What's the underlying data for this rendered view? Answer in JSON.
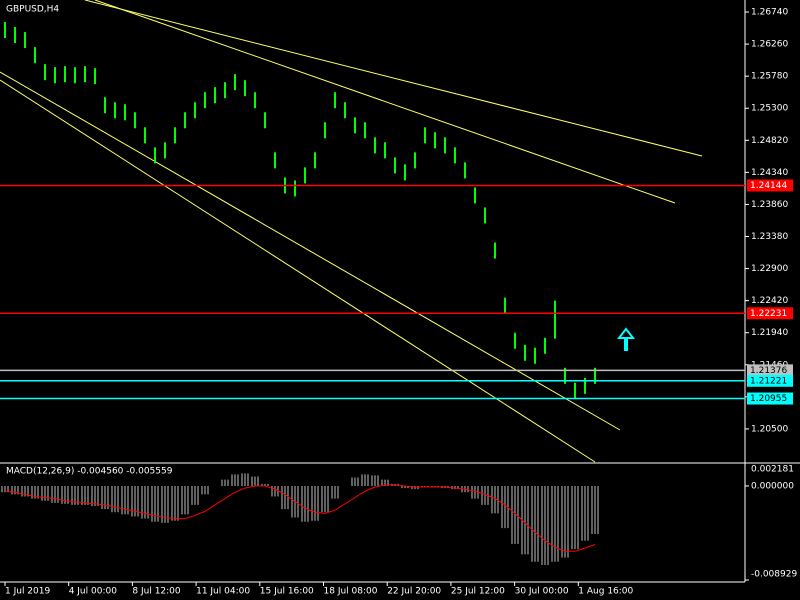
{
  "chart_data": {
    "type": "ohlc",
    "title": "GBPUSD,H4",
    "color": "#00ff00",
    "high": [
      1.2659,
      1.26515,
      1.2644,
      1.26215,
      1.2596,
      1.25915,
      1.2593,
      1.25915,
      1.2593,
      1.259,
      1.25465,
      1.2539,
      1.2536,
      1.2524,
      1.25015,
      1.24715,
      1.2479,
      1.25015,
      1.2524,
      1.2539,
      1.2554,
      1.25615,
      1.2569,
      1.2581,
      1.2572,
      1.2554,
      1.2524,
      1.2464,
      1.24265,
      1.2422,
      1.24415,
      1.2464,
      1.2509,
      1.2554,
      1.2539,
      1.25165,
      1.2509,
      1.24865,
      1.2479,
      1.24565,
      1.2446,
      1.2464,
      1.25015,
      1.2494,
      1.24865,
      1.24715,
      1.2449,
      1.24115,
      1.23815,
      1.2329,
      1.22465,
      1.2194,
      1.2176,
      1.21715,
      1.21865,
      1.2242,
      1.21415,
      1.2119,
      1.21265,
      1.21415
    ],
    "low": [
      1.2635,
      1.26275,
      1.262,
      1.25975,
      1.2572,
      1.25675,
      1.2569,
      1.25675,
      1.2569,
      1.2566,
      1.25225,
      1.2515,
      1.2512,
      1.25,
      1.24775,
      1.24475,
      1.2455,
      1.24775,
      1.25,
      1.2515,
      1.253,
      1.25375,
      1.2545,
      1.2557,
      1.2548,
      1.253,
      1.25,
      1.244,
      1.24025,
      1.2398,
      1.24175,
      1.244,
      1.2485,
      1.253,
      1.2515,
      1.24925,
      1.2485,
      1.24625,
      1.2455,
      1.24325,
      1.2422,
      1.244,
      1.24775,
      1.247,
      1.24625,
      1.24475,
      1.2425,
      1.23875,
      1.23575,
      1.2305,
      1.22225,
      1.217,
      1.2152,
      1.21475,
      1.21625,
      1.2185,
      1.21175,
      1.2095,
      1.21025,
      1.21175
    ],
    "ylim": [
      1.20005,
      1.2692
    ],
    "yticks": [
      {
        "value": 1.2674,
        "label": "1.26740"
      },
      {
        "value": 1.2626,
        "label": "1.26260"
      },
      {
        "value": 1.2578,
        "label": "1.25780"
      },
      {
        "value": 1.253,
        "label": "1.25300"
      },
      {
        "value": 1.2482,
        "label": "1.24820"
      },
      {
        "value": 1.2434,
        "label": "1.24340"
      },
      {
        "value": 1.2386,
        "label": "1.23860"
      },
      {
        "value": 1.2338,
        "label": "1.23380"
      },
      {
        "value": 1.229,
        "label": "1.22900"
      },
      {
        "value": 1.2242,
        "label": "1.22420"
      },
      {
        "value": 1.2194,
        "label": "1.21940"
      },
      {
        "value": 1.2146,
        "label": "1.21460"
      },
      {
        "value": 1.2098,
        "label": "1.20980"
      },
      {
        "value": 1.205,
        "label": "1.20500"
      }
    ],
    "levels": [
      {
        "value": 1.24144,
        "color": "#ff0000"
      },
      {
        "value": 1.22231,
        "color": "#ff0000"
      },
      {
        "value": 1.21376,
        "color": "#c0c0c0"
      },
      {
        "value": 1.21221,
        "color": "#00ffff"
      },
      {
        "value": 1.20955,
        "color": "#00ffff"
      }
    ],
    "x_labels": [
      "1 Jul 2019",
      "4 Jul 00:00",
      "8 Jul 12:00",
      "11 Jul 04:00",
      "15 Jul 16:00",
      "18 Jul 08:00",
      "22 Jul 20:00",
      "25 Jul 12:00",
      "30 Jul 00:00",
      "1 Aug 16:00"
    ],
    "macd": {
      "type": "histogram-line",
      "title": "MACD(12,26,9) -0.004560 -0.005559",
      "ylim": [
        -0.008929,
        0.002181
      ],
      "yticks": [
        0.002181,
        {
          "value": 0,
          "label": "0.000000"
        },
        -0.008929
      ],
      "histogram": {
        "color": "#c0c0c0",
        "values": [
          -0.0006,
          -0.0008,
          -0.001,
          -0.0012,
          -0.0014,
          -0.0016,
          -0.0017,
          -0.0018,
          -0.0018,
          -0.0019,
          -0.0022,
          -0.0025,
          -0.0027,
          -0.0029,
          -0.0031,
          -0.0034,
          -0.0035,
          -0.0033,
          -0.0027,
          -0.0018,
          -0.0008,
          0,
          0.0006,
          0.0011,
          0.0012,
          0.0009,
          0.0002,
          -0.001,
          -0.0022,
          -0.003,
          -0.0034,
          -0.0033,
          -0.0025,
          -0.0012,
          0,
          0.0008,
          0.0011,
          0.001,
          0.0006,
          0.0002,
          -0.0002,
          -0.0003,
          -0.0001,
          -0.0001,
          -0.0002,
          -0.0003,
          -0.0006,
          -0.0012,
          -0.0018,
          -0.0026,
          -0.004,
          -0.0055,
          -0.0065,
          -0.0072,
          -0.0075,
          -0.0072,
          -0.0068,
          -0.006,
          -0.0052,
          -0.00456
        ]
      },
      "signal": {
        "color": "#ff0000",
        "values": [
          -0.0005,
          -0.0006,
          -0.0008,
          -0.001,
          -0.0011,
          -0.0012,
          -0.0014,
          -0.0015,
          -0.0016,
          -0.0017,
          -0.0018,
          -0.002,
          -0.0022,
          -0.0024,
          -0.0026,
          -0.0028,
          -0.003,
          -0.0031,
          -0.0031,
          -0.0028,
          -0.0024,
          -0.0018,
          -0.0012,
          -0.0006,
          -0.0002,
          0,
          0,
          -0.0003,
          -0.0008,
          -0.0015,
          -0.0021,
          -0.0025,
          -0.0026,
          -0.0023,
          -0.0017,
          -0.0011,
          -0.0005,
          -0.0001,
          0.0001,
          0.0001,
          0,
          -0.0001,
          -0.0001,
          -0.0001,
          -0.0001,
          -0.0002,
          -0.0003,
          -0.0005,
          -0.0008,
          -0.0012,
          -0.0018,
          -0.0026,
          -0.0035,
          -0.0044,
          -0.0052,
          -0.0058,
          -0.0062,
          -0.0062,
          -0.0059,
          -0.005559
        ]
      }
    }
  }
}
